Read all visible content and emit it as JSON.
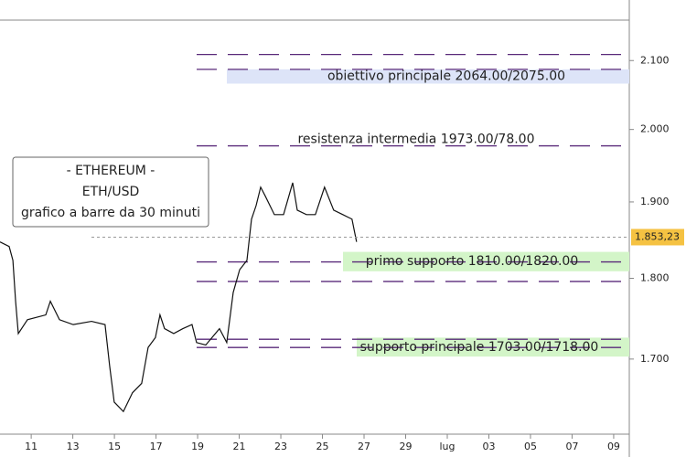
{
  "chart_data": {
    "type": "line",
    "log_scale": true,
    "info_box": [
      "- ETHEREUM -",
      "ETH/USD",
      "grafico a barre da 30 minuti"
    ],
    "xlim": [
      9.5,
      39.75
    ],
    "ylim": [
      1.612,
      2.161
    ],
    "xticks": [
      11,
      13,
      15,
      17,
      19,
      21,
      23,
      25,
      27,
      29,
      {
        "value": 31,
        "label": "lug"
      },
      {
        "value": 33,
        "label": "03"
      },
      {
        "value": 35,
        "label": "05"
      },
      {
        "value": 37,
        "label": "07"
      },
      {
        "value": 39,
        "label": "09"
      }
    ],
    "yticks": [
      {
        "value": 2.1,
        "label": "2.100"
      },
      {
        "value": 2.0,
        "label": "2.000"
      },
      {
        "value": 1.9,
        "label": "1.900"
      },
      {
        "value": 1.8,
        "label": "1.800"
      },
      {
        "value": 1.7,
        "label": "1.700"
      }
    ],
    "last_price": {
      "value": 1.85323,
      "label": "1.853,23",
      "color": "#f5c242"
    },
    "series": [
      {
        "color": "#111111",
        "x": [
          9.5,
          9.94,
          10.12,
          10.25,
          10.38,
          10.82,
          11.7,
          11.92,
          12.36,
          13.02,
          13.9,
          14.55,
          14.77,
          14.99,
          15.43,
          15.87,
          16.31,
          16.62,
          16.97,
          17.19,
          17.41,
          17.85,
          18.29,
          18.73,
          18.95,
          19.39,
          20.05,
          20.4,
          20.71,
          21.02,
          21.37,
          21.59,
          21.81,
          22.03,
          22.25,
          22.69,
          23.13,
          23.57,
          23.79,
          24.23,
          24.66,
          25.1,
          25.54,
          25.98,
          26.42,
          26.64
        ],
        "values": [
          1.847,
          1.841,
          1.823,
          1.771,
          1.731,
          1.748,
          1.754,
          1.771,
          1.748,
          1.742,
          1.746,
          1.742,
          1.692,
          1.649,
          1.638,
          1.66,
          1.671,
          1.714,
          1.726,
          1.754,
          1.737,
          1.731,
          1.737,
          1.742,
          1.72,
          1.717,
          1.737,
          1.72,
          1.782,
          1.811,
          1.823,
          1.877,
          1.895,
          1.92,
          1.908,
          1.883,
          1.883,
          1.926,
          1.889,
          1.883,
          1.883,
          1.92,
          1.889,
          1.883,
          1.877,
          1.847
        ]
      }
    ],
    "levels": [
      {
        "text": "obiettivo principale 2064.00/2075.00",
        "lines": [
          2.109,
          2.087
        ],
        "band": [
          2.066,
          2.087
        ],
        "band_color": "#dde4f8"
      },
      {
        "text": "resistenza intermedia 1973.00/78.00",
        "lines": [
          1.977
        ]
      },
      {
        "text": "primo supporto 1810.00/1820.00",
        "lines": [
          1.821,
          1.796
        ],
        "band": [
          1.809,
          1.834
        ],
        "band_color": "#d3f5c8"
      },
      {
        "text": "supporto principale 1703.00/1718.00",
        "lines": [
          1.724,
          1.714
        ],
        "band": [
          1.703,
          1.726
        ],
        "band_color": "#d3f5c8"
      }
    ],
    "level_color": "#5a2a7a"
  }
}
